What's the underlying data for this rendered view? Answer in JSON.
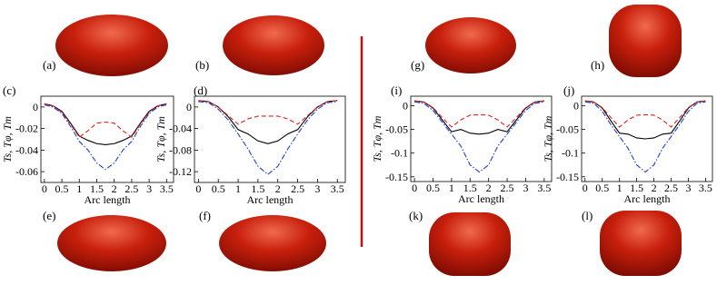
{
  "panel_labels": [
    "(a)",
    "(b)",
    "(g)",
    "(h)",
    "(c)",
    "(d)",
    "(i)",
    "(j)",
    "(e)",
    "(f)",
    "(k)",
    "(l)"
  ],
  "chart_data": [
    {
      "type": "line",
      "xlabel": "Arc length",
      "ylabel": "Ts, Tφ, Tm",
      "x": [
        0,
        0.25,
        0.5,
        0.75,
        1,
        1.25,
        1.5,
        1.75,
        2,
        2.25,
        2.5,
        2.75,
        3,
        3.25,
        3.5
      ],
      "xlim": [
        -0.1,
        3.7
      ],
      "xticks": [
        0,
        0.5,
        1,
        1.5,
        2,
        2.5,
        3,
        3.5
      ],
      "ylim": [
        -0.07,
        0.01
      ],
      "yticks": [
        0,
        -0.02,
        -0.04,
        -0.06
      ],
      "series": [
        {
          "color": "#000000",
          "dash": "solid",
          "values": [
            0.003,
            0.001,
            -0.004,
            -0.015,
            -0.027,
            -0.031,
            -0.034,
            -0.035,
            -0.034,
            -0.031,
            -0.027,
            -0.015,
            -0.004,
            0.001,
            0.003
          ]
        },
        {
          "color": "#e0201c",
          "dash": "dashed",
          "values": [
            0.003,
            0.001,
            -0.005,
            -0.016,
            -0.028,
            -0.022,
            -0.015,
            -0.014,
            -0.015,
            -0.022,
            -0.028,
            -0.016,
            -0.005,
            0.001,
            0.003
          ]
        },
        {
          "color": "#1f3fd0",
          "dash": "dashdot",
          "values": [
            0.002,
            0,
            -0.006,
            -0.018,
            -0.032,
            -0.04,
            -0.052,
            -0.058,
            -0.052,
            -0.04,
            -0.032,
            -0.018,
            -0.006,
            0,
            0.002
          ]
        }
      ]
    },
    {
      "type": "line",
      "xlabel": "Arc length",
      "ylabel": "Ts, Tφ, Tm",
      "x": [
        0,
        0.25,
        0.5,
        0.75,
        1,
        1.25,
        1.5,
        1.75,
        2,
        2.25,
        2.5,
        2.75,
        3,
        3.25,
        3.5
      ],
      "xlim": [
        -0.1,
        3.7
      ],
      "xticks": [
        0,
        0.5,
        1,
        1.5,
        2,
        2.5,
        3,
        3.5
      ],
      "ylim": [
        -0.14,
        0.02
      ],
      "yticks": [
        0,
        -0.04,
        -0.08,
        -0.12
      ],
      "series": [
        {
          "color": "#000000",
          "dash": "solid",
          "values": [
            0.012,
            0.01,
            0,
            -0.018,
            -0.042,
            -0.05,
            -0.063,
            -0.068,
            -0.063,
            -0.05,
            -0.042,
            -0.018,
            0,
            0.01,
            0.012
          ]
        },
        {
          "color": "#e0201c",
          "dash": "dashed",
          "values": [
            0.012,
            0.01,
            0,
            -0.016,
            -0.032,
            -0.022,
            -0.017,
            -0.017,
            -0.017,
            -0.022,
            -0.032,
            -0.016,
            0,
            0.01,
            0.012
          ]
        },
        {
          "color": "#1f3fd0",
          "dash": "dashdot",
          "values": [
            0.01,
            0.008,
            -0.004,
            -0.024,
            -0.05,
            -0.078,
            -0.11,
            -0.125,
            -0.11,
            -0.078,
            -0.05,
            -0.024,
            -0.004,
            0.008,
            0.01
          ]
        }
      ]
    },
    {
      "type": "line",
      "xlabel": "Arc length",
      "ylabel": "Ts, Tφ, Tm",
      "x": [
        0,
        0.25,
        0.5,
        0.75,
        1,
        1.25,
        1.5,
        1.75,
        2,
        2.25,
        2.5,
        2.75,
        3,
        3.25,
        3.5
      ],
      "xlim": [
        -0.1,
        3.7
      ],
      "xticks": [
        0,
        0.5,
        1,
        1.5,
        2,
        2.5,
        3,
        3.5
      ],
      "ylim": [
        -0.16,
        0.02
      ],
      "yticks": [
        0,
        -0.05,
        -0.1,
        -0.15
      ],
      "series": [
        {
          "color": "#000000",
          "dash": "solid",
          "values": [
            0.01,
            0.008,
            -0.005,
            -0.03,
            -0.055,
            -0.05,
            -0.058,
            -0.06,
            -0.058,
            -0.05,
            -0.055,
            -0.03,
            -0.005,
            0.008,
            0.01
          ]
        },
        {
          "color": "#e0201c",
          "dash": "dashed",
          "values": [
            0.01,
            0.008,
            -0.004,
            -0.025,
            -0.045,
            -0.03,
            -0.02,
            -0.019,
            -0.02,
            -0.03,
            -0.045,
            -0.025,
            -0.004,
            0.008,
            0.01
          ]
        },
        {
          "color": "#1f3fd0",
          "dash": "dashdot",
          "values": [
            0.008,
            0.005,
            -0.01,
            -0.035,
            -0.06,
            -0.085,
            -0.125,
            -0.14,
            -0.125,
            -0.085,
            -0.06,
            -0.035,
            -0.01,
            0.005,
            0.008
          ]
        }
      ]
    },
    {
      "type": "line",
      "xlabel": "Arc length",
      "ylabel": "Ts, Tφ, Tm",
      "x": [
        0,
        0.25,
        0.5,
        0.75,
        1,
        1.25,
        1.5,
        1.75,
        2,
        2.25,
        2.5,
        2.75,
        3,
        3.25,
        3.5
      ],
      "xlim": [
        -0.1,
        3.7
      ],
      "xticks": [
        0,
        0.5,
        1,
        1.5,
        2,
        2.5,
        3,
        3.5
      ],
      "ylim": [
        -0.16,
        0.02
      ],
      "yticks": [
        0,
        -0.05,
        -0.1,
        -0.15
      ],
      "series": [
        {
          "color": "#000000",
          "dash": "solid",
          "values": [
            0.01,
            0.008,
            -0.005,
            -0.032,
            -0.058,
            -0.06,
            -0.068,
            -0.07,
            -0.068,
            -0.06,
            -0.058,
            -0.032,
            -0.005,
            0.008,
            0.01
          ]
        },
        {
          "color": "#e0201c",
          "dash": "dashed",
          "values": [
            0.01,
            0.008,
            -0.004,
            -0.025,
            -0.045,
            -0.03,
            -0.02,
            -0.019,
            -0.02,
            -0.03,
            -0.045,
            -0.025,
            -0.004,
            0.008,
            0.01
          ]
        },
        {
          "color": "#1f3fd0",
          "dash": "dashdot",
          "values": [
            0.008,
            0.005,
            -0.012,
            -0.04,
            -0.065,
            -0.09,
            -0.125,
            -0.14,
            -0.125,
            -0.09,
            -0.065,
            -0.04,
            -0.012,
            0.005,
            0.008
          ]
        }
      ]
    }
  ]
}
